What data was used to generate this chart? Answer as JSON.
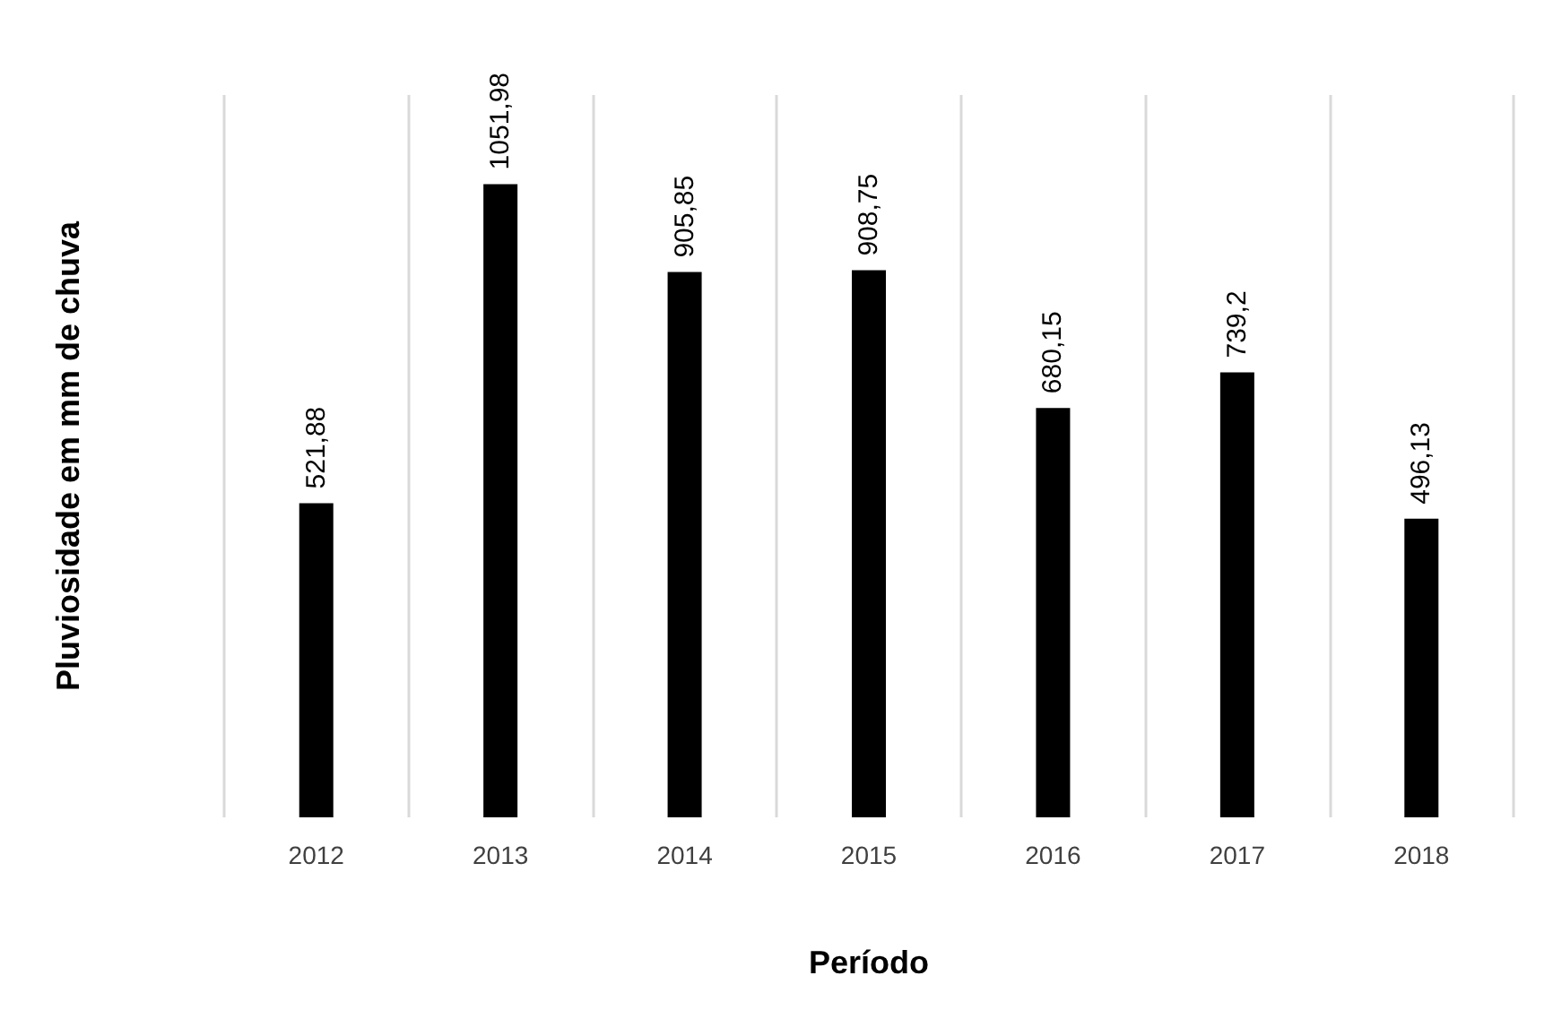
{
  "chart_data": {
    "type": "bar",
    "xlabel": "Período",
    "ylabel": "Pluviosidade em mm de chuva",
    "categories": [
      "2012",
      "2013",
      "2014",
      "2015",
      "2016",
      "2017",
      "2018"
    ],
    "series": [
      {
        "color": "#000000",
        "values": [
          521.88,
          1051.98,
          905.85,
          908.75,
          680.15,
          739.2,
          496.13
        ],
        "value_labels": [
          "521,88",
          "1051,98",
          "905,85",
          "908,75",
          "680,15",
          "739,2",
          "496,13"
        ]
      }
    ],
    "grid": "x"
  }
}
